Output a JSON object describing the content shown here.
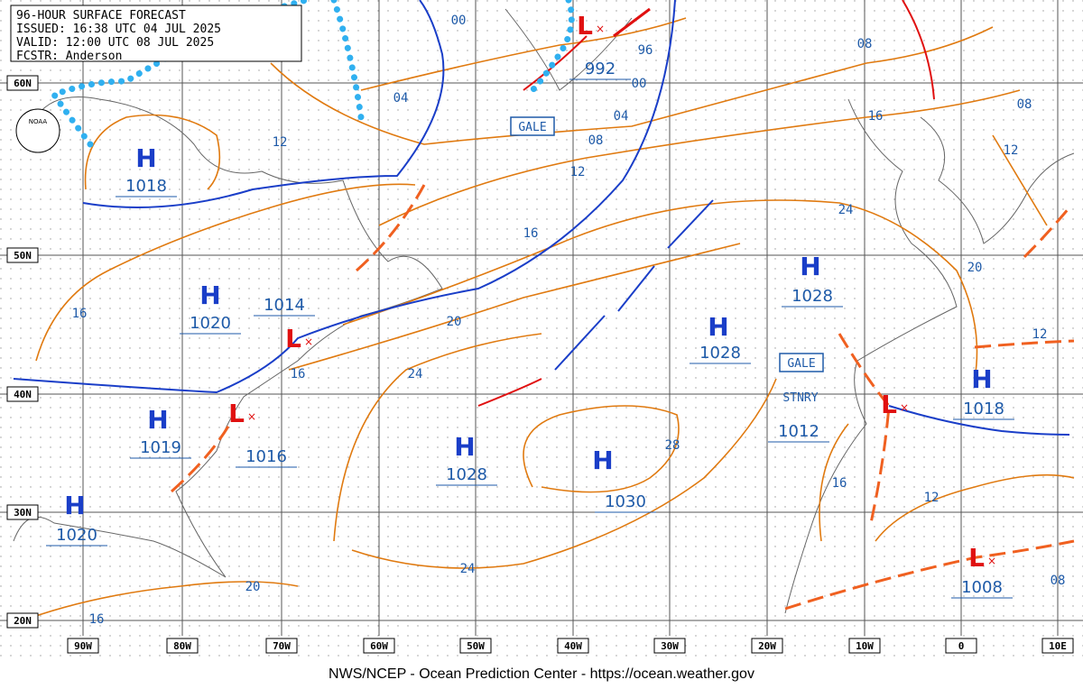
{
  "header": {
    "lines": [
      "96-HOUR SURFACE FORECAST",
      "ISSUED: 16:38 UTC 04 JUL 2025",
      "VALID:  12:00 UTC 08 JUL 2025",
      "FCSTR:  Anderson"
    ]
  },
  "logo": "NOAA",
  "lat_labels": [
    "60N",
    "50N",
    "40N",
    "30N",
    "20N"
  ],
  "lon_labels": [
    "90W",
    "80W",
    "70W",
    "60W",
    "50W",
    "40W",
    "30W",
    "20W",
    "10W",
    "0",
    "10E"
  ],
  "highs": [
    {
      "symbol": "H",
      "pressure": 1018
    },
    {
      "symbol": "H",
      "pressure": 1020
    },
    {
      "symbol": "H",
      "pressure": 1019
    },
    {
      "symbol": "H",
      "pressure": 1020
    },
    {
      "symbol": "H",
      "pressure": 1028
    },
    {
      "symbol": "H",
      "pressure": 1030
    },
    {
      "symbol": "H",
      "pressure": 1028
    },
    {
      "symbol": "H",
      "pressure": 1028
    },
    {
      "symbol": "H",
      "pressure": 1018
    }
  ],
  "lows": [
    {
      "symbol": "L",
      "pressure": 992
    },
    {
      "symbol": "L",
      "pressure": 1014
    },
    {
      "symbol": "L",
      "pressure": 1016
    },
    {
      "symbol": "L",
      "pressure": 1012
    },
    {
      "symbol": "L",
      "pressure": 1008
    }
  ],
  "isobar_labels": [
    "00",
    "96",
    "00",
    "04",
    "04",
    "08",
    "08",
    "16",
    "08",
    "12",
    "12",
    "12",
    "16",
    "24",
    "20",
    "16",
    "20",
    "12",
    "16",
    "24",
    "28",
    "16",
    "12",
    "24",
    "20",
    "16",
    "08"
  ],
  "annotations": [
    "GALE",
    "GALE",
    "STNRY"
  ],
  "footer": "NWS/NCEP - Ocean Prediction Center - https://ocean.weather.gov"
}
